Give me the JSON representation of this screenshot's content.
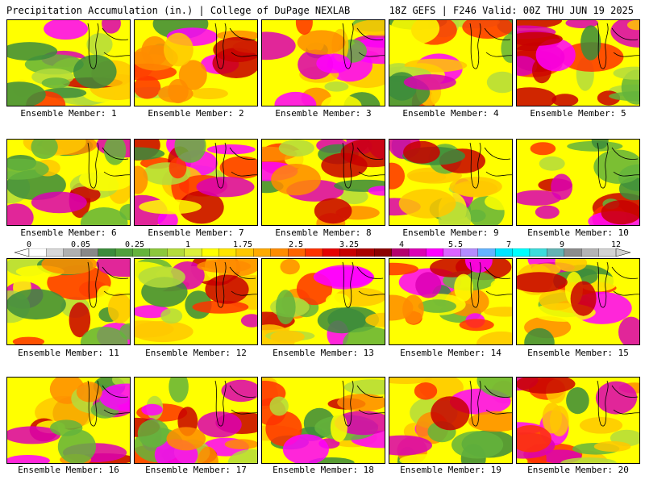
{
  "header": {
    "title_left": "Precipitation Accumulation (in.) | College of DuPage NEXLAB",
    "title_right": "18Z GEFS | F246 Valid: 00Z THU JUN 19 2025"
  },
  "panels": [
    {
      "label": "Ensemble Member: 1"
    },
    {
      "label": "Ensemble Member: 2"
    },
    {
      "label": "Ensemble Member: 3"
    },
    {
      "label": "Ensemble Member: 4"
    },
    {
      "label": "Ensemble Member: 5"
    },
    {
      "label": "Ensemble Member: 6"
    },
    {
      "label": "Ensemble Member: 7"
    },
    {
      "label": "Ensemble Member: 8"
    },
    {
      "label": "Ensemble Member: 9"
    },
    {
      "label": "Ensemble Member: 10"
    },
    {
      "label": "Ensemble Member: 11"
    },
    {
      "label": "Ensemble Member: 12"
    },
    {
      "label": "Ensemble Member: 13"
    },
    {
      "label": "Ensemble Member: 14"
    },
    {
      "label": "Ensemble Member: 15"
    },
    {
      "label": "Ensemble Member: 16"
    },
    {
      "label": "Ensemble Member: 17"
    },
    {
      "label": "Ensemble Member: 18"
    },
    {
      "label": "Ensemble Member: 19"
    },
    {
      "label": "Ensemble Member: 20"
    }
  ],
  "legend": {
    "tick_labels": [
      "0",
      "0.05",
      "0.25",
      "1",
      "1.75",
      "2.5",
      "3.25",
      "4",
      "5.5",
      "7",
      "9",
      "12"
    ],
    "colors": [
      "#ffffff",
      "#d8d8d8",
      "#b0b0b0",
      "#888888",
      "#3c8c3c",
      "#50a03c",
      "#64b43c",
      "#8cc83c",
      "#b4dc3c",
      "#dcf03c",
      "#ffff00",
      "#ffe600",
      "#ffc800",
      "#ffaa00",
      "#ff8c00",
      "#ff6400",
      "#ff3200",
      "#e60000",
      "#c80000",
      "#aa0000",
      "#8c0000",
      "#b4006e",
      "#dc00b4",
      "#ff00ff",
      "#dc64ff",
      "#b48cff",
      "#64b4ff",
      "#00e6ff",
      "#00ffff",
      "#3cdcdc",
      "#64b4b4",
      "#8c8c8c",
      "#b4b4b4",
      "#d2d2d2"
    ]
  }
}
